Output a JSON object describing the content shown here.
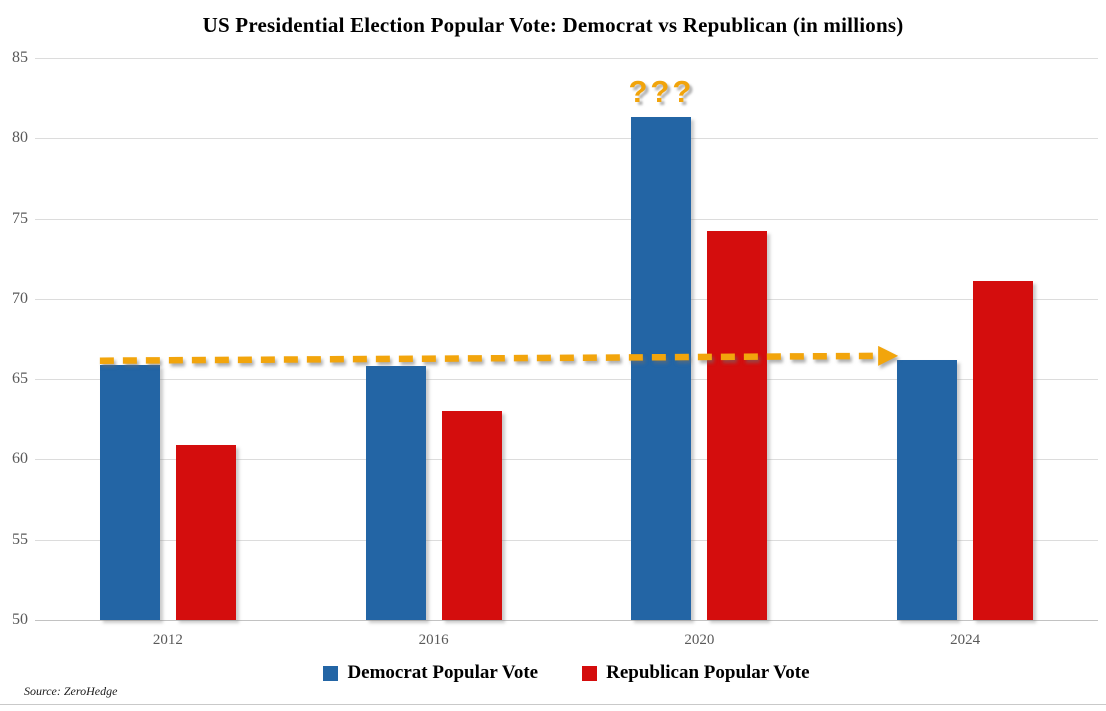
{
  "title": "US Presidential Election Popular Vote: Democrat vs Republican (in millions)",
  "source": "Source: ZeroHedge",
  "chart_data": {
    "type": "bar",
    "categories": [
      "2012",
      "2016",
      "2020",
      "2024"
    ],
    "series": [
      {
        "name": "Democrat Popular Vote",
        "color": "#2365A5",
        "values": [
          65.9,
          65.8,
          81.3,
          66.2
        ]
      },
      {
        "name": "Republican Popular Vote",
        "color": "#D40D0D",
        "values": [
          60.9,
          63.0,
          74.2,
          71.1
        ]
      }
    ],
    "title": "US Presidential Election Popular Vote: Democrat vs Republican (in millions)",
    "xlabel": "",
    "ylabel": "",
    "ylim": [
      50,
      85
    ],
    "yticks": [
      50,
      55,
      60,
      65,
      70,
      75,
      80,
      85
    ],
    "grid": "horizontal",
    "legend_position": "bottom",
    "annotations": [
      {
        "type": "dashed-arrow",
        "color": "#F2A50C",
        "from": {
          "category": "2012",
          "value": 65.9
        },
        "to": {
          "category": "2024",
          "value": 66.2
        }
      },
      {
        "type": "text",
        "label": "???",
        "color": "#F1A40B",
        "category": "2020",
        "above_value": 83
      }
    ]
  },
  "legend": {
    "items": [
      {
        "label": "Democrat Popular Vote",
        "color": "#2365A5"
      },
      {
        "label": "Republican Popular Vote",
        "color": "#D40D0D"
      }
    ]
  }
}
